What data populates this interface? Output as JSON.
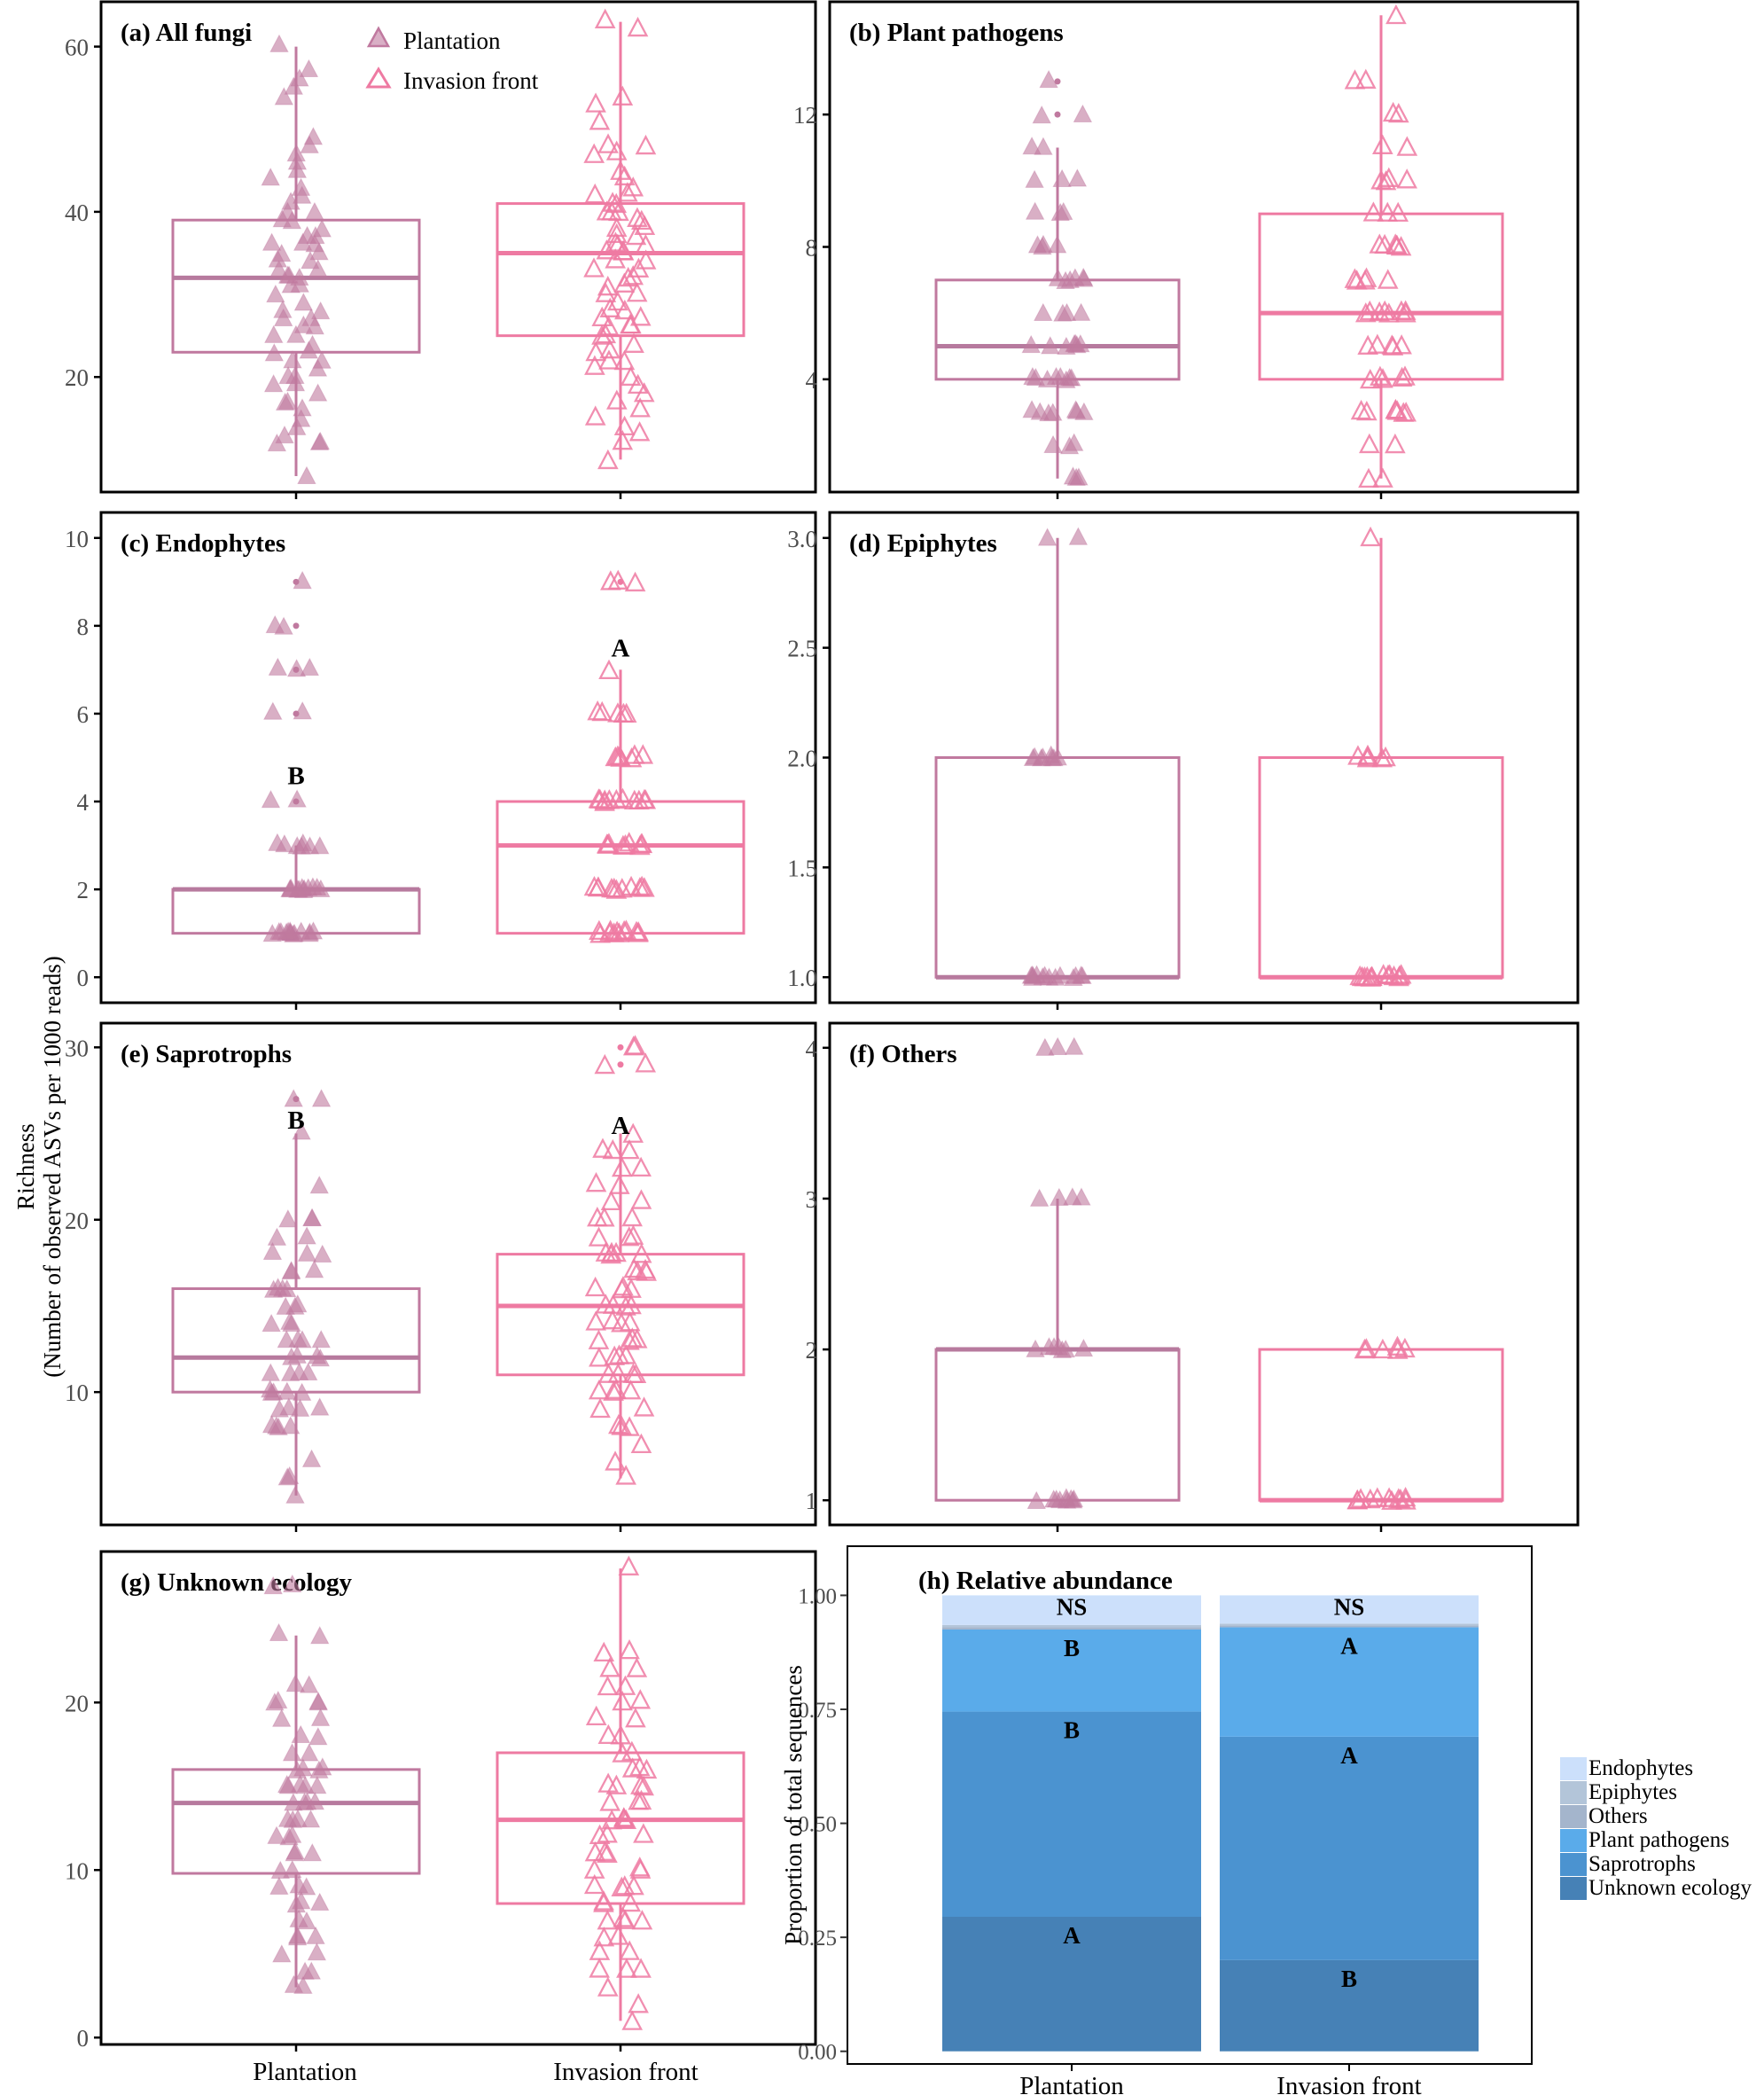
{
  "figure": {
    "ylabel_line1": "Richness",
    "ylabel_line2": "(Number of observed ASVs per 1000 reads)"
  },
  "legend": {
    "plantation": "Plantation",
    "invasion": "Invasion front"
  },
  "colors": {
    "plantation": "#c0799f",
    "plantation_median": "#b77a9e",
    "invasion": "#ee7aa2",
    "axis": "#000000",
    "tick_label": "#4d4d4d",
    "endophytes": "#cce0fb",
    "epiphytes": "#b3c5d9",
    "others": "#a4b5cc",
    "plant_pathogens": "#5aabea",
    "saprotrophs": "#4b93d0",
    "unknown_ecology": "#4681b6"
  },
  "chart_data": [
    {
      "type": "box",
      "title": "(a) All fungi",
      "categories": [
        "Plantation",
        "Invasion front"
      ],
      "yticks": [
        20,
        40,
        60
      ],
      "ylim": [
        6.5,
        65
      ],
      "show_xtick_labels": false,
      "series": [
        {
          "name": "Plantation",
          "min": 8,
          "q1": 23,
          "median": 32,
          "q3": 39,
          "max": 60,
          "points": [
            60,
            57,
            56,
            55,
            54,
            49,
            48,
            47,
            46,
            45,
            44,
            43,
            42,
            41,
            40,
            40,
            39,
            39,
            38,
            37,
            37,
            36,
            36,
            36,
            35,
            35,
            34,
            34,
            33,
            33,
            32,
            32,
            32,
            31,
            31,
            30,
            29,
            28,
            28,
            27,
            27,
            26,
            26,
            25,
            25,
            24,
            23,
            23,
            22,
            22,
            21,
            20,
            20,
            19,
            19,
            18,
            17,
            17,
            16,
            15,
            14,
            13,
            12,
            12,
            12,
            8
          ],
          "labels": []
        },
        {
          "name": "Invasion front",
          "min": 10,
          "q1": 25,
          "median": 35,
          "q3": 41,
          "max": 63,
          "points": [
            63,
            62,
            54,
            53,
            51,
            48,
            48,
            47,
            47,
            45,
            44,
            43,
            42,
            42,
            41,
            41,
            40,
            40,
            40,
            39,
            39,
            38,
            38,
            37,
            37,
            36,
            36,
            36,
            35,
            35,
            35,
            34,
            34,
            33,
            33,
            32,
            32,
            31,
            31,
            30,
            30,
            29,
            28,
            28,
            27,
            27,
            26,
            26,
            26,
            25,
            25,
            24,
            23,
            23,
            22,
            22,
            21,
            20,
            19,
            18,
            17,
            16,
            15,
            14,
            13,
            12,
            10
          ],
          "labels": []
        }
      ]
    },
    {
      "type": "box",
      "title": "(b) Plant pathogens",
      "categories": [
        "Plantation",
        "Invasion front"
      ],
      "yticks": [
        4,
        8,
        12
      ],
      "ylim": [
        0.7,
        15.3
      ],
      "show_xtick_labels": false,
      "series": [
        {
          "name": "Plantation",
          "min": 1,
          "q1": 4,
          "median": 5,
          "q3": 7,
          "max": 11,
          "outliers": [
            12,
            13
          ],
          "points": [
            13,
            12,
            12,
            11,
            11,
            10,
            10,
            10,
            9,
            9,
            9,
            8,
            8,
            8,
            8,
            7,
            7,
            7,
            7,
            7,
            7,
            6,
            6,
            6,
            6,
            5,
            5,
            5,
            5,
            5,
            5,
            5,
            4,
            4,
            4,
            4,
            4,
            4,
            4,
            4,
            3,
            3,
            3,
            3,
            3,
            3,
            3,
            2,
            2,
            2,
            1,
            1,
            1
          ],
          "labels": []
        },
        {
          "name": "Invasion front",
          "min": 1,
          "q1": 4,
          "median": 6,
          "q3": 9,
          "max": 15,
          "points": [
            15,
            13,
            13,
            12,
            12,
            11,
            11,
            10,
            10,
            10,
            10,
            9,
            9,
            9,
            8,
            8,
            8,
            8,
            8,
            8,
            7,
            7,
            7,
            7,
            7,
            6,
            6,
            6,
            6,
            6,
            6,
            6,
            6,
            5,
            5,
            5,
            5,
            5,
            4,
            4,
            4,
            4,
            4,
            3,
            3,
            3,
            3,
            3,
            3,
            3,
            2,
            2,
            1,
            1
          ],
          "labels": []
        }
      ]
    },
    {
      "type": "box",
      "title": "(c) Endophytes",
      "categories": [
        "Plantation",
        "Invasion front"
      ],
      "yticks": [
        0,
        2,
        4,
        6,
        8,
        10
      ],
      "ylim": [
        -0.5,
        10.5
      ],
      "show_xtick_labels": false,
      "series": [
        {
          "name": "Plantation",
          "min": 1,
          "q1": 1,
          "median": 2,
          "q3": 2,
          "max": 3,
          "outliers": [
            4,
            6,
            7,
            8,
            9
          ],
          "points": [
            9,
            8,
            8,
            7,
            7,
            7,
            6,
            6,
            4,
            4,
            3,
            3,
            3,
            3,
            3,
            3,
            3,
            2,
            2,
            2,
            2,
            2,
            2,
            2,
            2,
            2,
            2,
            2,
            2,
            1,
            1,
            1,
            1,
            1,
            1,
            1,
            1,
            1,
            1,
            1,
            1,
            1,
            1
          ],
          "labels": [
            {
              "text": "B",
              "y": 4.6
            }
          ]
        },
        {
          "name": "Invasion front",
          "min": 1,
          "q1": 1,
          "median": 3,
          "q3": 4,
          "max": 7,
          "outliers": [
            9
          ],
          "points": [
            9,
            9,
            9,
            7,
            6,
            6,
            6,
            6,
            6,
            5,
            5,
            5,
            5,
            5,
            5,
            5,
            4,
            4,
            4,
            4,
            4,
            4,
            4,
            4,
            4,
            4,
            4,
            3,
            3,
            3,
            3,
            3,
            3,
            3,
            3,
            3,
            2,
            2,
            2,
            2,
            2,
            2,
            2,
            2,
            2,
            2,
            2,
            1,
            1,
            1,
            1,
            1,
            1,
            1,
            1,
            1,
            1,
            1,
            1
          ],
          "labels": [
            {
              "text": "A",
              "y": 7.5
            }
          ]
        }
      ]
    },
    {
      "type": "box",
      "title": "(d) Epiphytes",
      "categories": [
        "Plantation",
        "Invasion front"
      ],
      "yticks": [
        1.0,
        1.5,
        2.0,
        2.5,
        3.0
      ],
      "ytick_labels": [
        "1.0",
        "1.5",
        "2.0",
        "2.5",
        "3.0"
      ],
      "ylim": [
        0.9,
        3.1
      ],
      "show_xtick_labels": false,
      "series": [
        {
          "name": "Plantation",
          "min": 1,
          "q1": 1,
          "median": 1,
          "q3": 2,
          "max": 3,
          "points": [
            3,
            3,
            2,
            2,
            2,
            2,
            2,
            2,
            2,
            2,
            1,
            1,
            1,
            1,
            1,
            1,
            1,
            1,
            1,
            1,
            1,
            1,
            1,
            1
          ],
          "labels": []
        },
        {
          "name": "Invasion front",
          "min": 1,
          "q1": 1,
          "median": 1,
          "q3": 2,
          "max": 3,
          "points": [
            3,
            2,
            2,
            2,
            2,
            2,
            2,
            1,
            1,
            1,
            1,
            1,
            1,
            1,
            1,
            1,
            1,
            1,
            1,
            1,
            1
          ],
          "labels": []
        }
      ]
    },
    {
      "type": "box",
      "title": "(e) Saprotrophs",
      "categories": [
        "Plantation",
        "Invasion front"
      ],
      "yticks": [
        10,
        20,
        30
      ],
      "ylim": [
        2.5,
        31.2
      ],
      "show_xtick_labels": false,
      "series": [
        {
          "name": "Plantation",
          "min": 4,
          "q1": 10,
          "median": 12,
          "q3": 16,
          "max": 25,
          "outliers": [
            27
          ],
          "points": [
            27,
            27,
            25,
            22,
            20,
            20,
            20,
            19,
            19,
            18,
            18,
            18,
            17,
            17,
            17,
            16,
            16,
            16,
            16,
            15,
            15,
            15,
            14,
            14,
            14,
            13,
            13,
            13,
            13,
            12,
            12,
            12,
            12,
            11,
            11,
            11,
            11,
            10,
            10,
            10,
            10,
            10,
            9,
            9,
            9,
            9,
            8,
            8,
            8,
            8,
            6,
            5,
            5,
            4
          ],
          "labels": [
            {
              "text": "B",
              "y": 25.8
            }
          ]
        },
        {
          "name": "Invasion front",
          "min": 5,
          "q1": 11,
          "median": 15,
          "q3": 18,
          "max": 25,
          "outliers": [
            29,
            30
          ],
          "points": [
            30,
            30,
            29,
            29,
            25,
            24,
            24,
            24,
            23,
            23,
            22,
            22,
            21,
            21,
            20,
            20,
            20,
            19,
            19,
            19,
            18,
            18,
            18,
            18,
            18,
            17,
            17,
            17,
            17,
            16,
            16,
            16,
            16,
            15,
            15,
            15,
            15,
            14,
            14,
            14,
            14,
            13,
            13,
            13,
            13,
            12,
            12,
            12,
            12,
            11,
            11,
            11,
            11,
            10,
            10,
            10,
            10,
            9,
            9,
            8,
            8,
            8,
            7,
            6,
            5
          ],
          "labels": [
            {
              "text": "A",
              "y": 25.5
            }
          ]
        }
      ]
    },
    {
      "type": "box",
      "title": "(f) Others",
      "categories": [
        "Plantation",
        "Invasion front"
      ],
      "yticks": [
        1,
        2,
        3,
        4
      ],
      "ylim": [
        0.86,
        4.14
      ],
      "show_xtick_labels": false,
      "series": [
        {
          "name": "Plantation",
          "min": 1,
          "q1": 1,
          "median": 2,
          "q3": 2,
          "max": 3,
          "points": [
            4,
            4,
            4,
            3,
            3,
            3,
            3,
            2,
            2,
            2,
            2,
            2,
            2,
            2,
            1,
            1,
            1,
            1,
            1,
            1,
            1,
            1,
            1
          ],
          "labels": []
        },
        {
          "name": "Invasion front",
          "min": 1,
          "q1": 1,
          "median": 1,
          "q3": 2,
          "max": 2,
          "points": [
            2,
            2,
            2,
            2,
            2,
            2,
            1,
            1,
            1,
            1,
            1,
            1,
            1,
            1,
            1,
            1,
            1
          ],
          "labels": []
        }
      ]
    },
    {
      "type": "box",
      "title": "(g) Unknown ecology",
      "categories": [
        "Plantation",
        "Invasion front"
      ],
      "yticks": [
        0,
        10,
        20
      ],
      "ylim": [
        -0.2,
        28.8
      ],
      "show_xtick_labels": true,
      "series": [
        {
          "name": "Plantation",
          "min": 3,
          "q1": 9.8,
          "median": 14,
          "q3": 16,
          "max": 24,
          "points": [
            27,
            27,
            24,
            24,
            21,
            21,
            20,
            20,
            20,
            20,
            19,
            19,
            18,
            18,
            17,
            17,
            16,
            16,
            16,
            16,
            15,
            15,
            15,
            15,
            15,
            14,
            14,
            14,
            14,
            13,
            13,
            13,
            13,
            12,
            12,
            12,
            11,
            11,
            11,
            10,
            10,
            9,
            9,
            9,
            8,
            8,
            8,
            7,
            7,
            6,
            6,
            6,
            5,
            5,
            4,
            4,
            3,
            3
          ],
          "labels": []
        },
        {
          "name": "Invasion front",
          "min": 1,
          "q1": 8,
          "median": 13,
          "q3": 17,
          "max": 28,
          "points": [
            28,
            23,
            23,
            22,
            22,
            21,
            21,
            20,
            20,
            19,
            19,
            18,
            18,
            17,
            17,
            16,
            16,
            16,
            15,
            15,
            15,
            15,
            14,
            14,
            14,
            13,
            13,
            13,
            13,
            13,
            12,
            12,
            12,
            11,
            11,
            11,
            10,
            10,
            10,
            9,
            9,
            9,
            9,
            8,
            8,
            8,
            7,
            7,
            7,
            7,
            6,
            6,
            5,
            5,
            4,
            4,
            4,
            3,
            2,
            1
          ],
          "labels": []
        }
      ]
    },
    {
      "type": "stacked_bar",
      "title": "(h) Relative abundance",
      "ylabel": "Proportion of total sequences",
      "categories": [
        "Plantation",
        "Invasion front"
      ],
      "yticks": [
        0,
        0.25,
        0.5,
        0.75,
        1.0
      ],
      "ytick_labels": [
        "0.00",
        "0.25",
        "0.50",
        "0.75",
        "1.00"
      ],
      "ylim": [
        -0.02,
        1.1
      ],
      "series": [
        {
          "name": "Unknown ecology",
          "values": [
            0.295,
            0.2
          ],
          "labels": [
            "A",
            "B"
          ]
        },
        {
          "name": "Saprotrophs",
          "values": [
            0.45,
            0.49
          ],
          "labels": [
            "B",
            "A"
          ]
        },
        {
          "name": "Plant pathogens",
          "values": [
            0.18,
            0.24
          ],
          "labels": [
            "B",
            "A"
          ]
        },
        {
          "name": "Others",
          "values": [
            0.005,
            0.004
          ],
          "labels": [
            "",
            ""
          ]
        },
        {
          "name": "Epiphytes",
          "values": [
            0.005,
            0.004
          ],
          "labels": [
            "",
            ""
          ]
        },
        {
          "name": "Endophytes",
          "values": [
            0.065,
            0.062
          ],
          "labels": [
            "NS",
            "NS"
          ]
        }
      ],
      "legend_order": [
        "Endophytes",
        "Epiphytes",
        "Others",
        "Plant pathogens",
        "Saprotrophs",
        "Unknown ecology"
      ]
    }
  ]
}
